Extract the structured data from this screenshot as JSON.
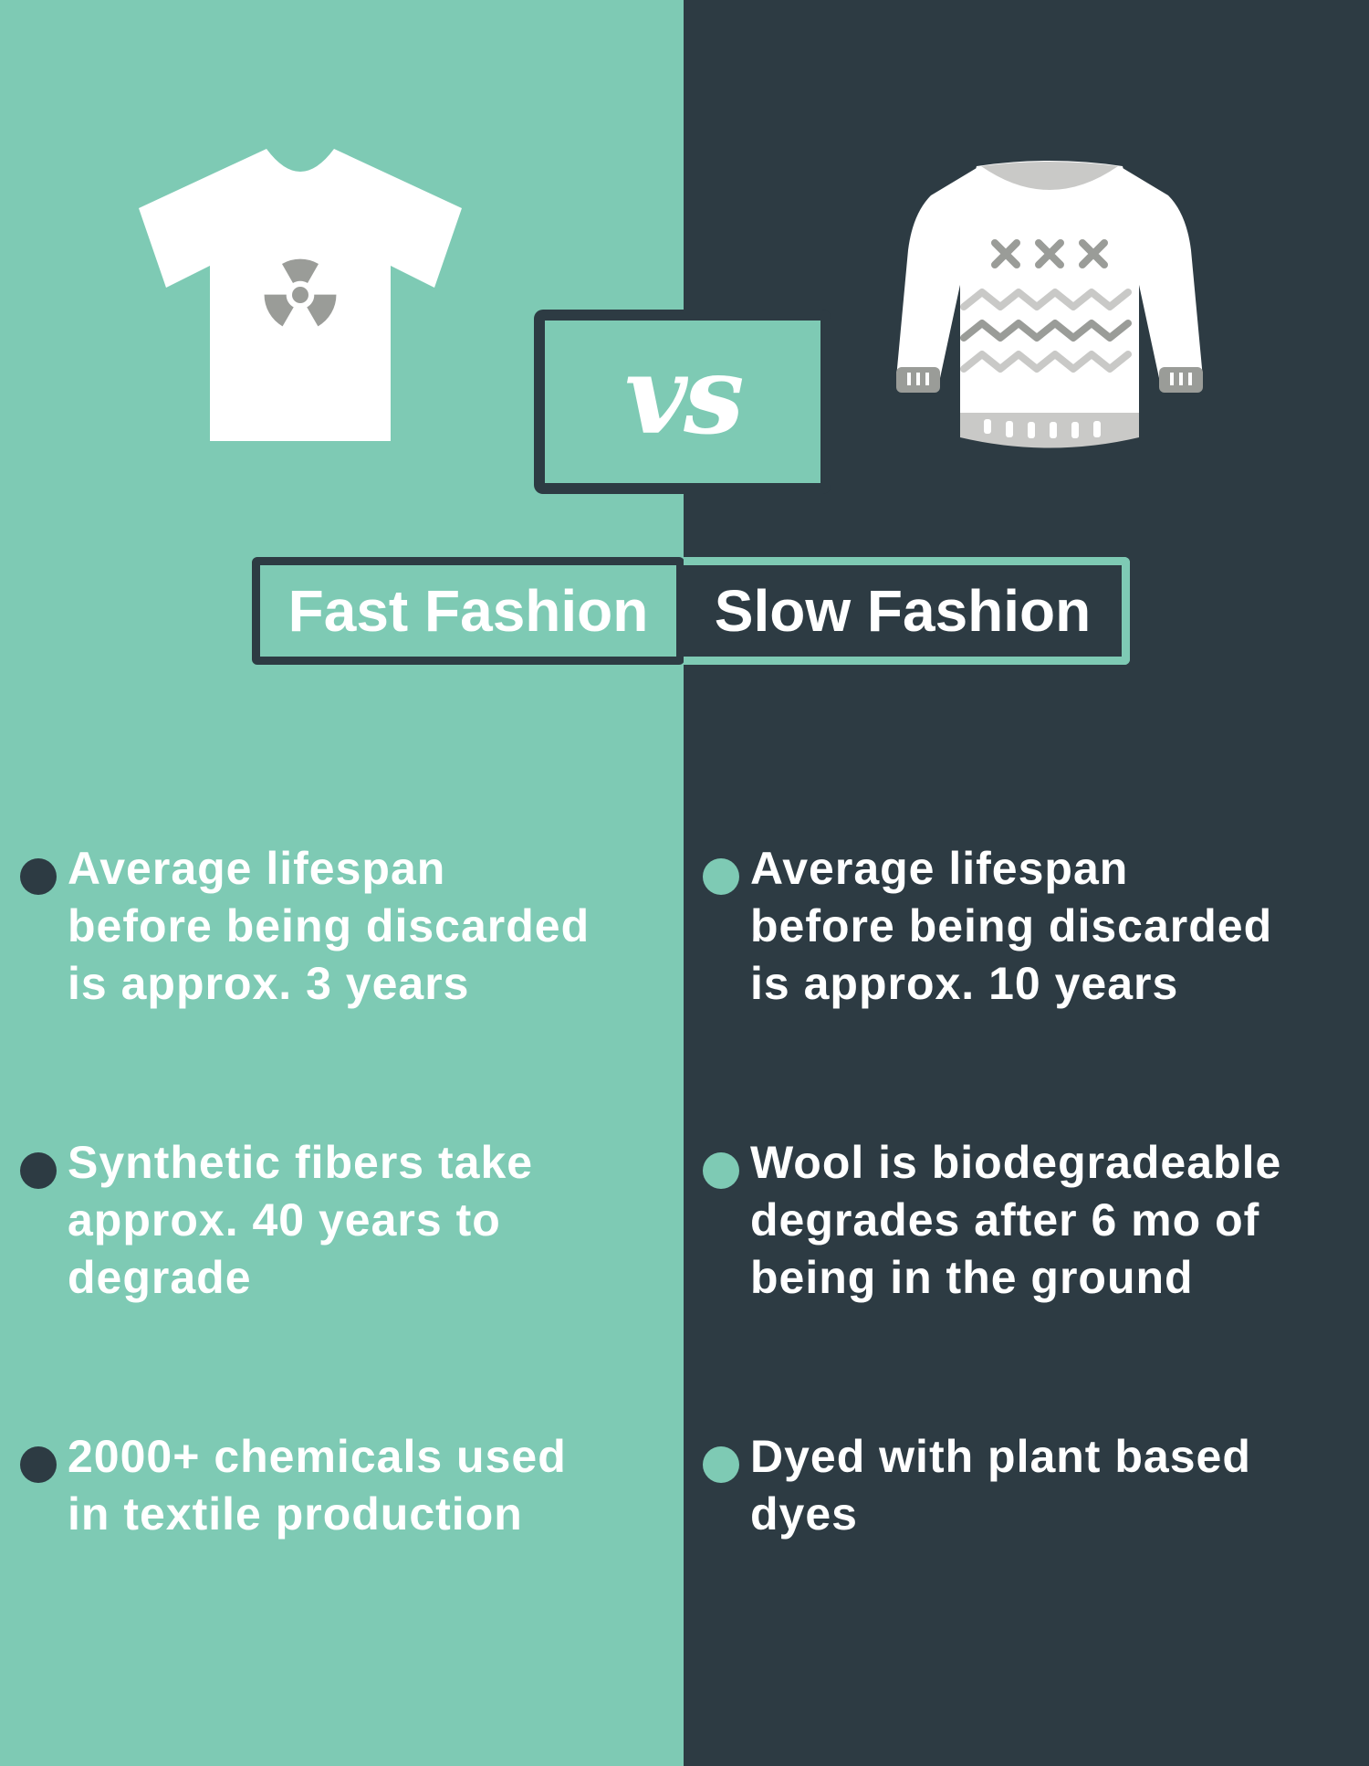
{
  "vs_label": "vs",
  "fast": {
    "title": "Fast Fashion",
    "points": [
      "Average lifespan\nbefore being discarded\nis approx. 3 years",
      "Synthetic fibers take\napprox. 40 years to\ndegrade",
      "2000+ chemicals used\nin textile production"
    ]
  },
  "slow": {
    "title": "Slow Fashion",
    "points": [
      "Average lifespan\nbefore being discarded\nis approx. 10 years",
      "Wool is biodegradeable\ndegrades after 6 mo of\nbeing in the ground",
      "Dyed with plant based\ndyes"
    ]
  },
  "icons": {
    "left": "tshirt-radiation-icon",
    "right": "knit-sweater-icon"
  },
  "colors": {
    "mint": "#7ecab4",
    "charcoal": "#2d3b43",
    "white": "#ffffff",
    "grey": "#9a9c98"
  }
}
